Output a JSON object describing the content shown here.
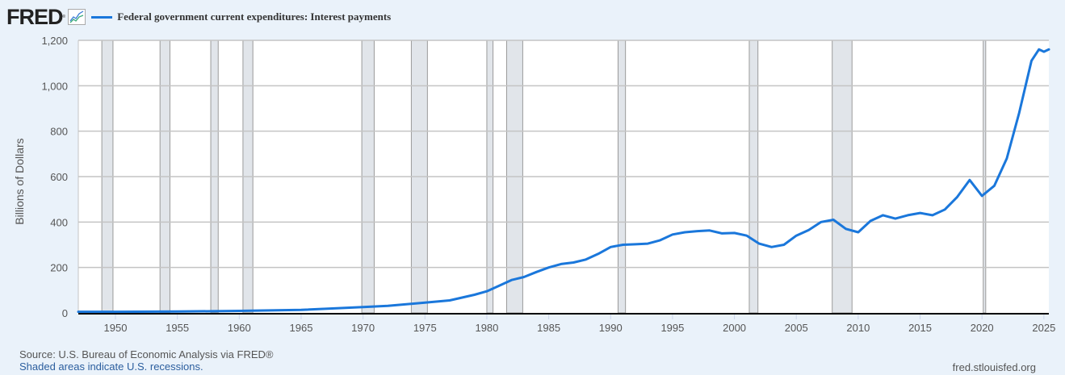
{
  "header": {
    "logo_text": "FRED",
    "logo_mark": "®",
    "legend_label": "Federal government current expenditures: Interest payments",
    "series_color": "#1a77db"
  },
  "axes": {
    "ylabel": "Billions of Dollars",
    "yticks": [
      "0",
      "200",
      "400",
      "600",
      "800",
      "1,000",
      "1,200"
    ],
    "xticks": [
      "1950",
      "1955",
      "1960",
      "1965",
      "1970",
      "1975",
      "1980",
      "1985",
      "1990",
      "1995",
      "2000",
      "2005",
      "2010",
      "2015",
      "2020",
      "2025"
    ]
  },
  "footer": {
    "source": "Source: U.S. Bureau of Economic Analysis via FRED®",
    "recession_note": "Shaded areas indicate U.S. recessions.",
    "site": "fred.stlouisfed.org"
  },
  "chart_data": {
    "type": "line",
    "title": "Federal government current expenditures: Interest payments",
    "xlabel": "",
    "ylabel": "Billions of Dollars",
    "xlim": [
      1947,
      2025.4
    ],
    "ylim": [
      0,
      1200
    ],
    "grid": true,
    "legend_position": "top-left",
    "series": [
      {
        "name": "Federal government current expenditures: Interest payments",
        "color": "#1a77db",
        "x": [
          1947,
          1950,
          1955,
          1960,
          1965,
          1970,
          1972,
          1975,
          1977,
          1979,
          1980,
          1981,
          1982,
          1983,
          1984,
          1985,
          1986,
          1987,
          1988,
          1989,
          1990,
          1991,
          1992,
          1993,
          1994,
          1995,
          1996,
          1997,
          1998,
          1999,
          2000,
          2001,
          2002,
          2003,
          2004,
          2005,
          2006,
          2007,
          2008,
          2009,
          2010,
          2011,
          2012,
          2013,
          2014,
          2015,
          2016,
          2017,
          2018,
          2019,
          2020,
          2021,
          2022,
          2023,
          2024,
          2024.6,
          2025,
          2025.4
        ],
        "values": [
          5,
          5,
          6,
          9,
          13,
          26,
          31,
          45,
          55,
          80,
          95,
          120,
          145,
          158,
          180,
          200,
          215,
          222,
          235,
          260,
          290,
          300,
          302,
          305,
          320,
          345,
          355,
          360,
          363,
          350,
          352,
          340,
          305,
          290,
          300,
          340,
          365,
          400,
          410,
          370,
          355,
          405,
          430,
          415,
          430,
          440,
          430,
          455,
          510,
          585,
          515,
          560,
          680,
          880,
          1110,
          1160,
          1150,
          1160
        ]
      }
    ],
    "recessions": [
      [
        1948.9,
        1949.8
      ],
      [
        1953.6,
        1954.4
      ],
      [
        1957.7,
        1958.3
      ],
      [
        1960.3,
        1961.1
      ],
      [
        1969.9,
        1970.9
      ],
      [
        1973.9,
        1975.2
      ],
      [
        1980.0,
        1980.5
      ],
      [
        1981.6,
        1982.9
      ],
      [
        1990.6,
        1991.2
      ],
      [
        2001.2,
        2001.9
      ],
      [
        2007.9,
        2009.5
      ],
      [
        2020.1,
        2020.3
      ]
    ]
  }
}
